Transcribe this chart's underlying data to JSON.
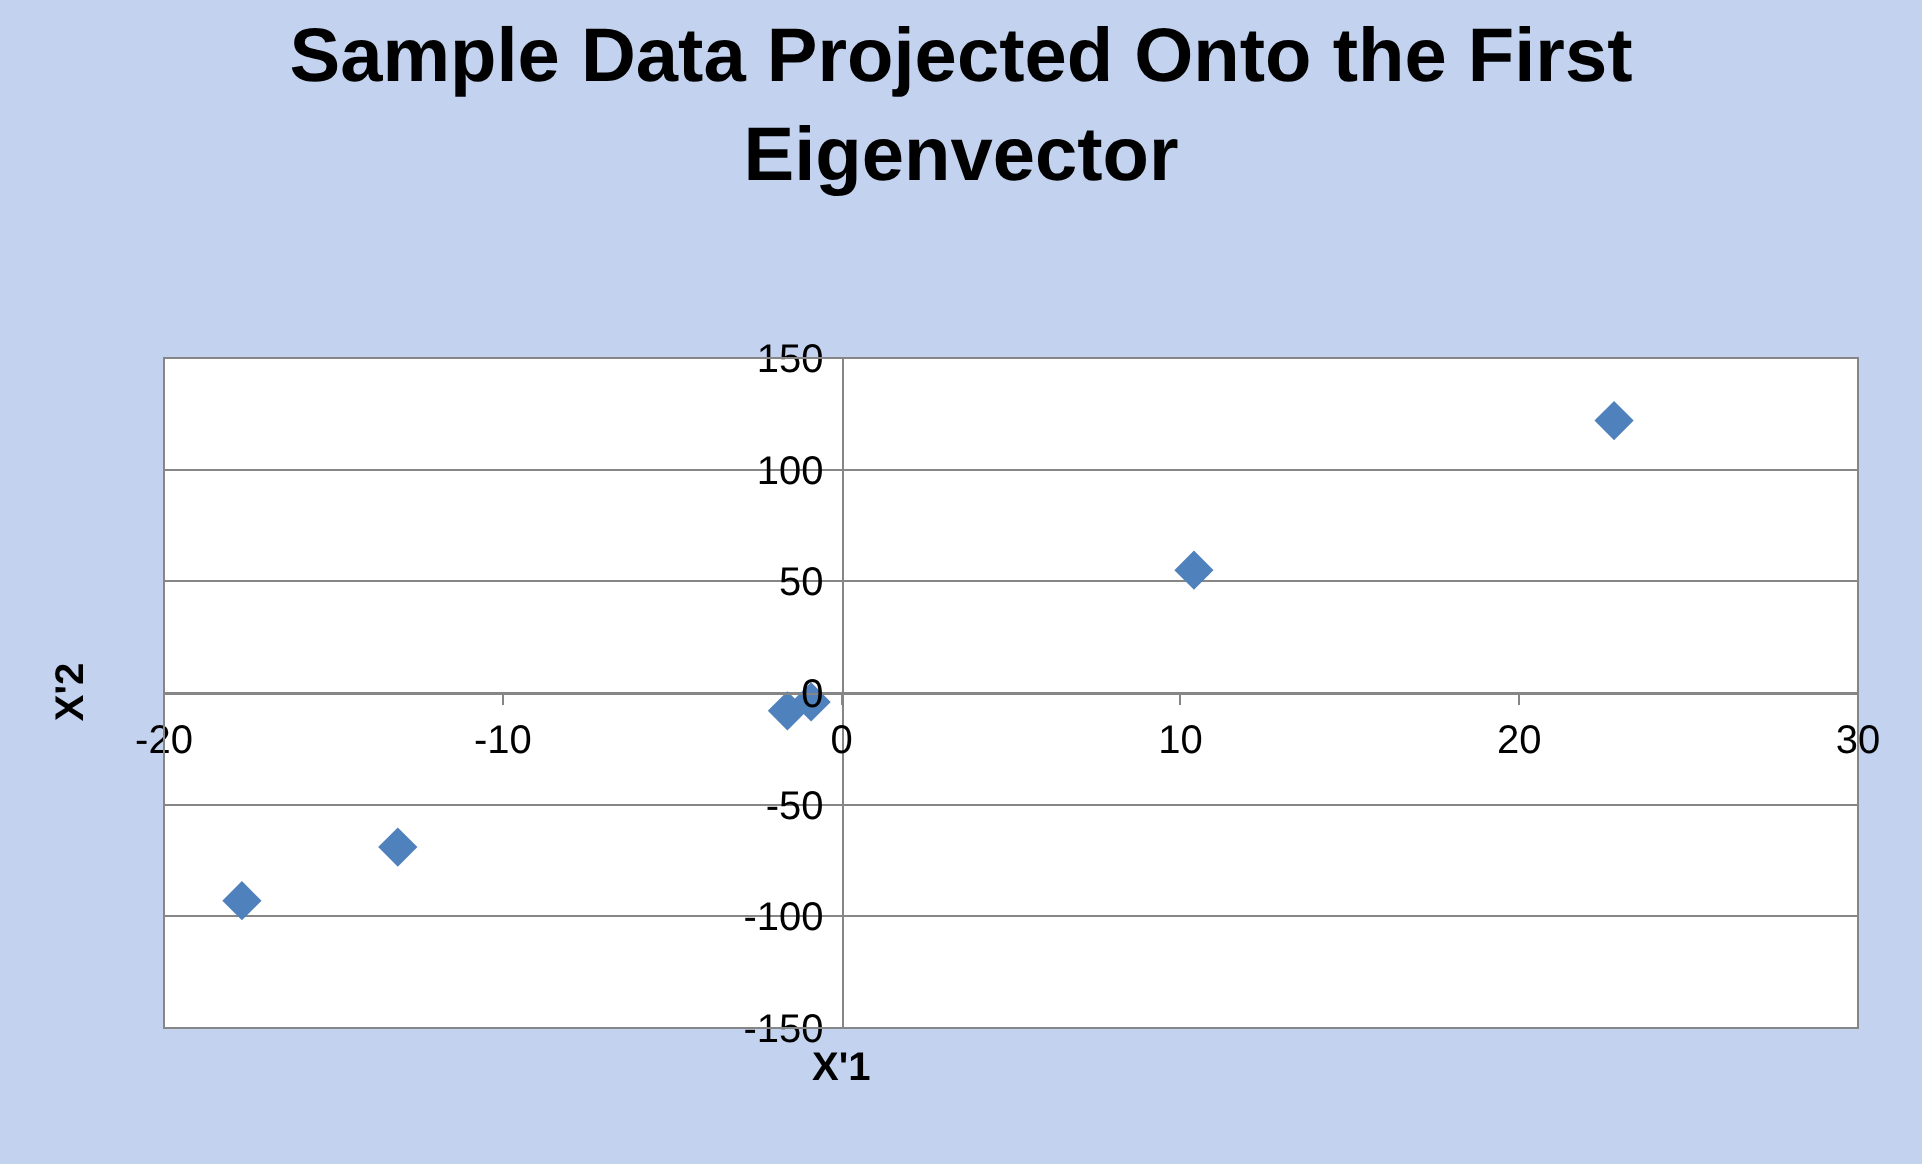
{
  "chart_data": {
    "type": "scatter",
    "title": "Sample Data Projected Onto the First Eigenvector",
    "xlabel": "X'1",
    "ylabel": "X'2",
    "x": [
      -17.7,
      -13.1,
      -1.6,
      -0.9,
      10.4,
      22.8
    ],
    "values": [
      -93,
      -69,
      -8,
      -4,
      55,
      122
    ],
    "color": "#4f81bd",
    "marker": "diamond",
    "xlim": [
      -20,
      30
    ],
    "xticks": [
      -20,
      -10,
      0,
      10,
      20,
      30
    ],
    "ylim": [
      -150,
      150
    ],
    "yticks": [
      -150,
      -100,
      -50,
      0,
      50,
      100,
      150
    ],
    "grid": "y",
    "legend": false
  }
}
